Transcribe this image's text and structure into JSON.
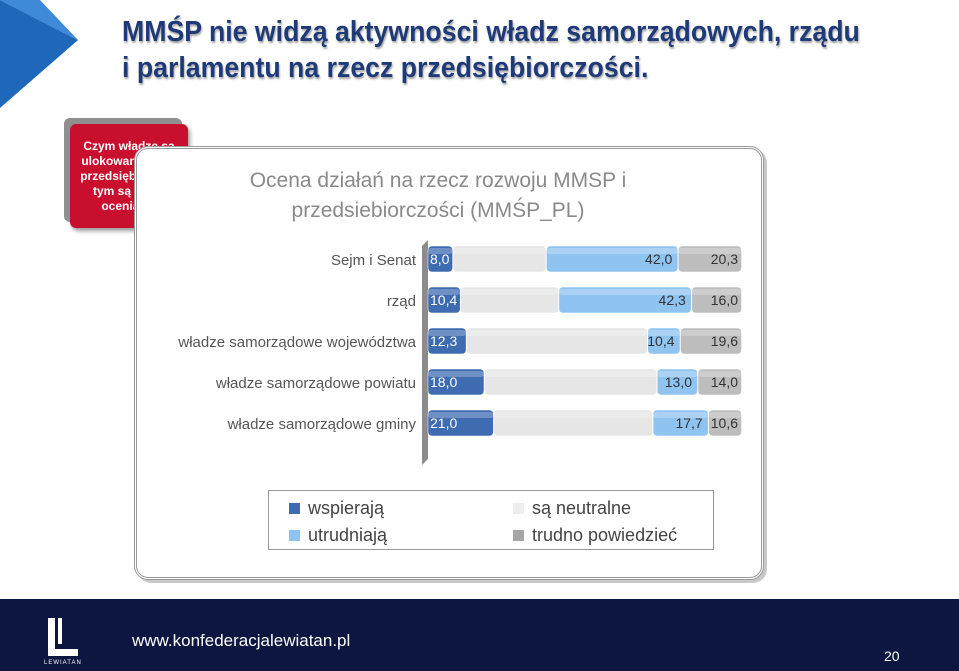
{
  "slide": {
    "title_line1": "MMŚP nie widzą aktywności władz samorządowych, rządu",
    "title_line2": "i parlamentu na rzecz przedsiębiorczości.",
    "callout": "Czym władze są ulokowane bliżej przedsiębiorców, tym są lepiej oceniane.",
    "footer_url": "www.konfederacjalewiatan.pl",
    "page_number": "20",
    "logo_text": "LEWIATAN"
  },
  "chart_data": {
    "type": "bar",
    "orientation": "horizontal",
    "stacked": true,
    "percent_stacked": true,
    "title": "Ocena działań na rzecz rozwoju MMSP i przedsiebiorczości (MMŚP_PL)",
    "categories": [
      "Sejm i Senat",
      "rząd",
      "władze samorządowe województwa",
      "władze samorządowe powiatu",
      "władze samorządowe gminy"
    ],
    "series": [
      {
        "name": "wspierają",
        "color": "#3f6bb0",
        "values": [
          8.0,
          10.4,
          12.3,
          18.0,
          21.0
        ],
        "labels": [
          "8,0",
          "10,4",
          "12,3",
          "18,0",
          "21,0"
        ]
      },
      {
        "name": "są neutralne",
        "color": "#e6e6e6",
        "values": [
          29.7,
          31.3,
          57.7,
          55.0,
          50.7
        ],
        "labels": [
          "",
          "",
          "",
          "",
          ""
        ]
      },
      {
        "name": "utrudniają",
        "color": "#8fc3f0",
        "values": [
          42.0,
          42.3,
          10.4,
          13.0,
          17.7
        ],
        "labels": [
          "42,0",
          "42,3",
          "10,4",
          "13,0",
          "17,7"
        ]
      },
      {
        "name": "trudno powiedzieć",
        "color": "#bdbdbd",
        "values": [
          20.3,
          16.0,
          19.6,
          14.0,
          10.6
        ],
        "labels": [
          "20,3",
          "16,0",
          "19,6",
          "14,0",
          "10,6"
        ]
      }
    ],
    "xlim": [
      0,
      100
    ],
    "legend_position": "bottom",
    "legend": [
      {
        "name": "wspierają",
        "color": "#3f6bb0"
      },
      {
        "name": "są neutralne",
        "color": "#eeeeee"
      },
      {
        "name": "utrudniają",
        "color": "#8fc3f0"
      },
      {
        "name": "trudno powiedzieć",
        "color": "#a6a6a6"
      }
    ]
  }
}
